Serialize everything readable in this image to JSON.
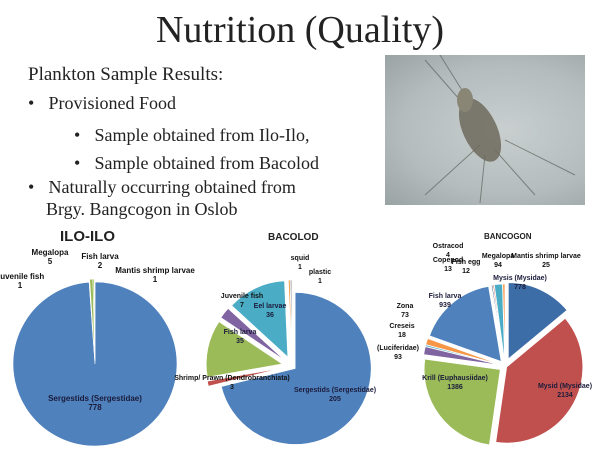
{
  "slide": {
    "title": "Nutrition (Quality)",
    "subtitle": "Plankton Sample Results:",
    "bullets": [
      "Provisioned Food",
      "Sample obtained from Ilo-Ilo,",
      "Sample obtained from Bacolod",
      "Naturally occurring obtained from",
      "Brgy. Bangcogon in Oslob"
    ],
    "bullet_glyph": "•"
  },
  "chart_data": [
    {
      "type": "pie",
      "title": "ILO-ILO",
      "labels": [
        "Sergestids (Sergestidae)",
        "Juvenile fish",
        "Megalopa",
        "Fish larva",
        "Mantis shrimp larvae"
      ],
      "values": [
        778,
        1,
        5,
        2,
        1
      ],
      "colors": [
        "#4f81bd",
        "#c0504d",
        "#9bbb59",
        "#8ec04a",
        "#f79646"
      ]
    },
    {
      "type": "pie",
      "title": "BACOLOD",
      "labels": [
        "Sergestids (Sergestidae)",
        "Shrimp/ Prawn (Dendrobranchiata)",
        "Fish larva",
        "Juvenile fish",
        "Eel larvae",
        "squid",
        "plastic"
      ],
      "values": [
        205,
        3,
        35,
        7,
        36,
        1,
        1
      ],
      "colors": [
        "#4f81bd",
        "#c0504d",
        "#9bbb59",
        "#8064a2",
        "#4bacc6",
        "#f79646",
        "#a6a6a6"
      ]
    },
    {
      "type": "pie",
      "title": "BANCOGON",
      "labels": [
        "Mysis (Mysidae)",
        "Mysid (Mysidae)",
        "Krill (Euphausiidae)",
        "(Luciferidae)",
        "Creseis",
        "Zona",
        "Fish larva",
        "Copepod",
        "Ostracod",
        "Fish egg",
        "Megalopa",
        "Mantis shrimp larvae"
      ],
      "values": [
        778,
        2134,
        1386,
        93,
        18,
        73,
        939,
        13,
        4,
        12,
        94,
        25
      ],
      "colors": [
        "#3d6da6",
        "#c0504d",
        "#9bbb59",
        "#8064a2",
        "#4bacc6",
        "#f79646",
        "#4f81bd",
        "#2c4d75",
        "#772c2a",
        "#c0504d",
        "#4bacc6",
        "#f79646"
      ]
    }
  ]
}
